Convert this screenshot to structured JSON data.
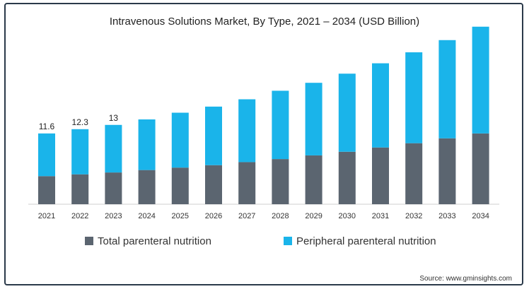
{
  "chart_data": {
    "type": "bar",
    "stacked": true,
    "title": "Intravenous Solutions Market, By Type, 2021 – 2034 (USD Billion)",
    "categories": [
      "2021",
      "2022",
      "2023",
      "2024",
      "2025",
      "2026",
      "2027",
      "2028",
      "2029",
      "2030",
      "2031",
      "2032",
      "2033",
      "2034"
    ],
    "series": [
      {
        "name": "Total parenteral nutrition",
        "color": "#5b6570",
        "values": [
          4.6,
          4.9,
          5.2,
          5.6,
          6.0,
          6.4,
          6.9,
          7.4,
          8.0,
          8.6,
          9.3,
          10.0,
          10.8,
          11.6
        ]
      },
      {
        "name": "Peripheral parenteral nutrition",
        "color": "#1ab4ea",
        "values": [
          7.0,
          7.4,
          7.8,
          8.3,
          9.0,
          9.6,
          10.3,
          11.2,
          11.9,
          12.8,
          13.8,
          14.9,
          16.1,
          17.5
        ]
      }
    ],
    "data_labels": [
      "11.6",
      "12.3",
      "13"
    ],
    "ylim": [
      0,
      30
    ],
    "source": "Source: www.gminsights.com"
  }
}
